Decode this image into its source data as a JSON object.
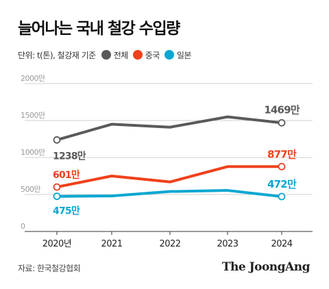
{
  "title": "늘어나는 국내 철강 수입량",
  "legend": {
    "unit": "단위: t(톤), 철강재 기준",
    "items": [
      {
        "label": "전체",
        "color": "#5a5a5a"
      },
      {
        "label": "중국",
        "color": "#f0401c"
      },
      {
        "label": "일본",
        "color": "#0aa7d2"
      }
    ]
  },
  "chart_data": {
    "type": "line",
    "x": [
      "2020년",
      "2021",
      "2022",
      "2023",
      "2024"
    ],
    "y_ticks": [
      "0",
      "500만",
      "1000만",
      "1500만",
      "2000만"
    ],
    "ylim": [
      0,
      2000
    ],
    "unit": "만",
    "series": [
      {
        "name": "전체",
        "color": "#5a5a5a",
        "values": [
          1238,
          1450,
          1410,
          1550,
          1469
        ],
        "start_label": "1238만",
        "end_label": "1469만"
      },
      {
        "name": "중국",
        "color": "#f0401c",
        "values": [
          601,
          750,
          670,
          877,
          877
        ],
        "start_label": "601만",
        "end_label": "877만"
      },
      {
        "name": "일본",
        "color": "#0aa7d2",
        "values": [
          475,
          480,
          540,
          555,
          472
        ],
        "start_label": "475만",
        "end_label": "472만"
      }
    ],
    "grid": true
  },
  "footer": {
    "source": "자료: 한국철강협회",
    "brand": "The JoongAng"
  }
}
